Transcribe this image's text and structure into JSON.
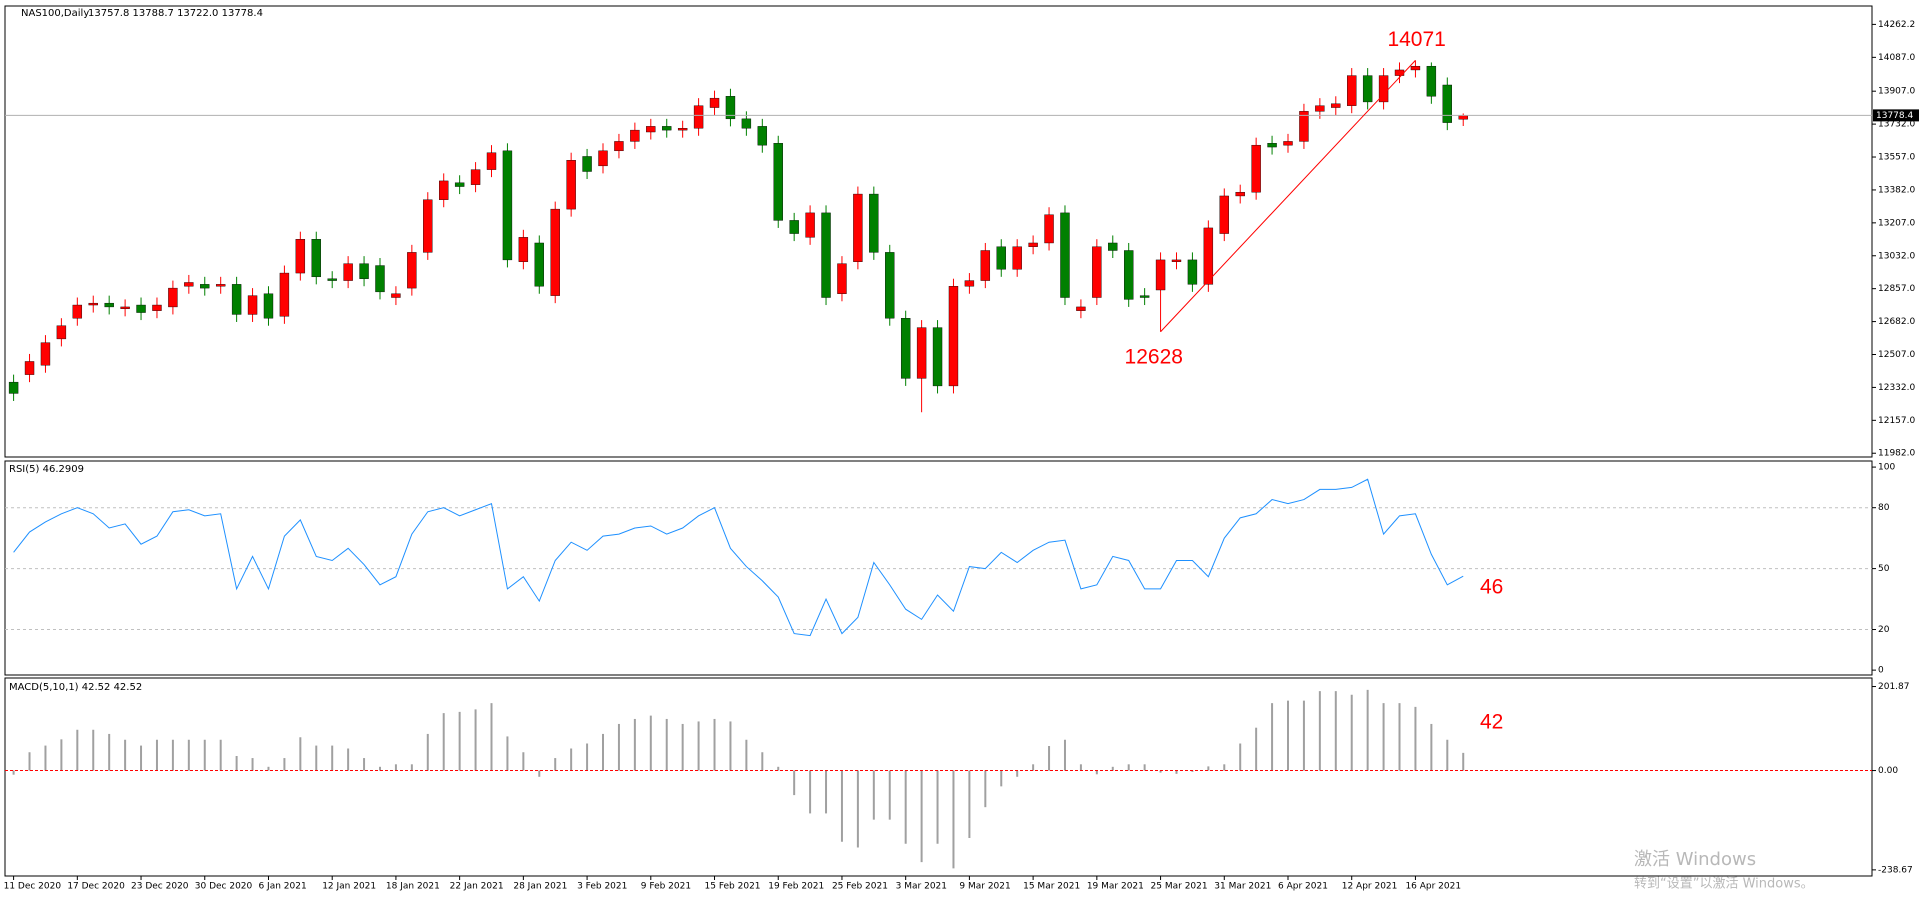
{
  "chart_data": [
    {
      "type": "candlestick",
      "title": "NAS100,Daily",
      "title_values": "13757.8 13788.7 13722.0 13778.4",
      "categories": [
        "11 Dec 2020",
        null,
        null,
        null,
        "17 Dec 2020",
        null,
        null,
        null,
        "23 Dec 2020",
        null,
        null,
        null,
        "30 Dec 2020",
        null,
        null,
        null,
        "6 Jan 2021",
        null,
        null,
        null,
        "12 Jan 2021",
        null,
        null,
        null,
        "18 Jan 2021",
        null,
        null,
        null,
        "22 Jan 2021",
        null,
        null,
        null,
        "28 Jan 2021",
        null,
        null,
        null,
        "3 Feb 2021",
        null,
        null,
        null,
        "9 Feb 2021",
        null,
        null,
        null,
        "15 Feb 2021",
        null,
        null,
        null,
        "19 Feb 2021",
        null,
        null,
        null,
        "25 Feb 2021",
        null,
        null,
        null,
        "3 Mar 2021",
        null,
        null,
        null,
        "9 Mar 2021",
        null,
        null,
        null,
        "15 Mar 2021",
        null,
        null,
        null,
        "19 Mar 2021",
        null,
        null,
        null,
        "25 Mar 2021",
        null,
        null,
        null,
        "31 Mar 2021",
        null,
        null,
        null,
        "6 Apr 2021",
        null,
        null,
        null,
        "12 Apr 2021",
        null,
        null,
        null,
        "16 Apr 2021",
        null,
        null,
        null
      ],
      "open": [
        12360,
        12400,
        12450,
        12590,
        12700,
        12770,
        12780,
        12750,
        12770,
        12740,
        12760,
        12870,
        12880,
        12870,
        12880,
        12720,
        12830,
        12710,
        12940,
        13120,
        12910,
        12900,
        12990,
        12980,
        12810,
        12860,
        13050,
        13330,
        13420,
        13410,
        13490,
        13590,
        13000,
        13100,
        12820,
        13280,
        13560,
        13510,
        13590,
        13640,
        13690,
        13720,
        13700,
        13710,
        13820,
        13880,
        13760,
        13720,
        13630,
        13220,
        13130,
        13260,
        12830,
        13000,
        13360,
        13050,
        12700,
        12380,
        12650,
        12340,
        12870,
        12900,
        13080,
        12960,
        13080,
        13100,
        13260,
        12740,
        12810,
        13100,
        13060,
        12820,
        12850,
        13000,
        13010,
        12880,
        13150,
        13350,
        13370,
        13630,
        13620,
        13640,
        13800,
        13820,
        13830,
        13990,
        13850,
        13990,
        14020,
        14040,
        13940,
        13757.8
      ],
      "high": [
        12400,
        12510,
        12610,
        12700,
        12810,
        12820,
        12820,
        12800,
        12810,
        12810,
        12900,
        12930,
        12920,
        12920,
        12920,
        12860,
        12870,
        12980,
        13160,
        13160,
        12950,
        13030,
        13030,
        13020,
        12870,
        13090,
        13370,
        13470,
        13460,
        13530,
        13620,
        13630,
        13170,
        13140,
        13320,
        13580,
        13600,
        13630,
        13680,
        13740,
        13760,
        13760,
        13750,
        13870,
        13910,
        13920,
        13800,
        13760,
        13670,
        13260,
        13300,
        13300,
        13030,
        13400,
        13400,
        13090,
        12740,
        12690,
        12690,
        12910,
        12940,
        13100,
        13120,
        13120,
        13140,
        13290,
        13300,
        12800,
        13120,
        13140,
        13100,
        12860,
        13050,
        13050,
        13050,
        13220,
        13390,
        13410,
        13660,
        13670,
        13680,
        13840,
        13870,
        13880,
        14030,
        14030,
        14030,
        14060,
        14071,
        14060,
        13980,
        13788.7
      ],
      "low": [
        12260,
        12360,
        12410,
        12550,
        12660,
        12730,
        12720,
        12710,
        12690,
        12700,
        12720,
        12830,
        12820,
        12830,
        12680,
        12680,
        12660,
        12670,
        12900,
        12880,
        12860,
        12860,
        12870,
        12800,
        12770,
        12820,
        13010,
        13290,
        13360,
        13370,
        13450,
        12970,
        12960,
        12830,
        12780,
        13240,
        13440,
        13470,
        13550,
        13600,
        13650,
        13660,
        13660,
        13670,
        13780,
        13720,
        13670,
        13580,
        13180,
        13110,
        13090,
        12770,
        12790,
        12960,
        13010,
        12660,
        12340,
        12200,
        12300,
        12300,
        12830,
        12860,
        12920,
        12920,
        13040,
        13060,
        12770,
        12700,
        12770,
        13020,
        12760,
        12770,
        12628,
        12960,
        12840,
        12840,
        13110,
        13310,
        13330,
        13570,
        13580,
        13600,
        13760,
        13780,
        13790,
        13810,
        13810,
        13950,
        13980,
        13840,
        13700,
        13722
      ],
      "close": [
        12300,
        12470,
        12570,
        12660,
        12770,
        12780,
        12760,
        12760,
        12730,
        12770,
        12860,
        12890,
        12860,
        12880,
        12720,
        12820,
        12700,
        12940,
        13120,
        12920,
        12900,
        12990,
        12910,
        12840,
        12830,
        13050,
        13330,
        13430,
        13400,
        13490,
        13580,
        13010,
        13130,
        12870,
        13280,
        13540,
        13480,
        13590,
        13640,
        13700,
        13720,
        13700,
        13710,
        13830,
        13870,
        13760,
        13710,
        13620,
        13220,
        13150,
        13260,
        12810,
        12990,
        13360,
        13050,
        12700,
        12380,
        12650,
        12340,
        12870,
        12900,
        13060,
        12960,
        13080,
        13100,
        13250,
        12810,
        12760,
        13080,
        13060,
        12800,
        12810,
        13010,
        13010,
        12880,
        13180,
        13350,
        13370,
        13620,
        13610,
        13640,
        13800,
        13830,
        13840,
        13990,
        13850,
        13990,
        14020,
        14040,
        13880,
        13740,
        13778.4
      ],
      "up_color": "#ff0000",
      "down_color": "#008000",
      "last_price": 13778.4,
      "ylim": [
        11962,
        14360
      ],
      "yticks": [
        14262.2,
        {
          "value": 14087,
          "label": "14087.0"
        },
        {
          "value": 13907,
          "label": "13907.0"
        },
        {
          "value": 13732,
          "label": "13732.0"
        },
        {
          "value": 13557,
          "label": "13557.0"
        },
        {
          "value": 13382,
          "label": "13382.0"
        },
        {
          "value": 13207,
          "label": "13207.0"
        },
        {
          "value": 13032,
          "label": "13032.0"
        },
        {
          "value": 12857,
          "label": "12857.0"
        },
        {
          "value": 12682,
          "label": "12682.0"
        },
        {
          "value": 12507,
          "label": "12507.0"
        },
        {
          "value": 12332,
          "label": "12332.0"
        },
        {
          "value": 12157,
          "label": "12157.0"
        },
        {
          "value": 11982,
          "label": "11982.0"
        }
      ],
      "annotations": [
        "14071",
        "12628"
      ]
    },
    {
      "type": "line",
      "title": "RSI(5) 46.2909",
      "color": "#1e90ff",
      "values": [
        58,
        68,
        73,
        77,
        80,
        77,
        70,
        72,
        62,
        66,
        78,
        79,
        76,
        77,
        40,
        56,
        40,
        66,
        74,
        56,
        54,
        60,
        52,
        42,
        46,
        67,
        78,
        80,
        76,
        79,
        82,
        40,
        46,
        34,
        54,
        63,
        59,
        66,
        67,
        70,
        71,
        67,
        70,
        76,
        80,
        60,
        51,
        44,
        36,
        18,
        17,
        35,
        18,
        26,
        53,
        42,
        30,
        25,
        37,
        29,
        51,
        50,
        58,
        53,
        59,
        63,
        64,
        40,
        42,
        56,
        54,
        40,
        40,
        54,
        54,
        46,
        65,
        75,
        77,
        84,
        82,
        84,
        89,
        89,
        90,
        94,
        67,
        76,
        77,
        57,
        42,
        46.29
      ],
      "ylim": [
        -2.4,
        103
      ],
      "yticks": [
        0,
        20,
        50,
        80,
        100
      ],
      "levels": [
        20,
        50,
        80
      ],
      "annotations": [
        "46"
      ]
    },
    {
      "type": "bar",
      "title": "MACD(5,10,1) 42.52 42.52",
      "color": "#a0a0a0",
      "zero_color": "#ff0000",
      "values": [
        -10,
        44,
        60,
        75,
        98,
        98,
        88,
        74,
        60,
        74,
        74,
        74,
        74,
        74,
        35,
        30,
        9,
        30,
        80,
        60,
        60,
        53,
        30,
        9,
        15,
        15,
        88,
        138,
        141,
        147,
        162,
        82,
        44,
        -15,
        30,
        53,
        65,
        88,
        112,
        124,
        132,
        124,
        112,
        118,
        124,
        118,
        74,
        44,
        9,
        -59,
        -103,
        -103,
        -171,
        -185,
        -118,
        -118,
        -176,
        -220,
        -176,
        -235,
        -162,
        -88,
        -38,
        -15,
        15,
        59,
        74,
        15,
        -9,
        9,
        15,
        15,
        -5,
        -8,
        -3,
        10,
        15,
        65,
        103,
        162,
        168,
        168,
        191,
        191,
        182,
        194,
        162,
        162,
        153,
        112,
        74,
        42.52
      ],
      "ylim": [
        -253.4,
        222.4
      ],
      "yticks": [
        -238.67,
        {
          "value": 0,
          "label": "0.00"
        },
        201.87
      ],
      "annotations": [
        "42"
      ]
    }
  ],
  "watermark": {
    "line1": "激活 Windows",
    "line2": "转到“设置”以激活 Windows。"
  }
}
